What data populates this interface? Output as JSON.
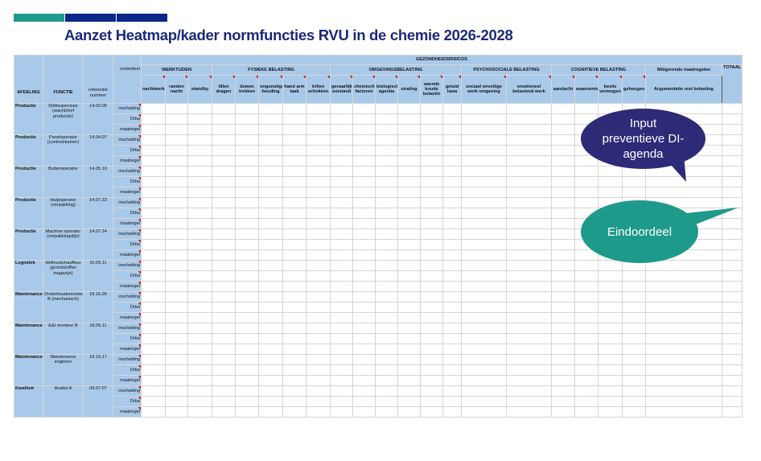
{
  "title": "Aanzet Heatmap/kader normfuncties RVU in de chemie 2026-2028",
  "colors": {
    "teal": "#1f9a8f",
    "navy": "#0a2888",
    "header_blue": "#a9c9ea",
    "bubble_purple": "#2d2a78",
    "bubble_teal": "#1d9a8a"
  },
  "header": {
    "top": "GEZONDHEIDSRISICOS",
    "afdeling": "AFDELING",
    "functie": "FUNCTIE",
    "referentie": "referentie nummer",
    "onderdeel": "onderdeel",
    "groups": [
      {
        "name": "WERKTIJDEN",
        "cols": [
          "nachtwerk",
          "randen nacht",
          "standby"
        ]
      },
      {
        "name": "FYSIEKE BELASTING",
        "cols": [
          "tillen dragen",
          "duwen trekken",
          "ongunstige houding",
          "hand arm taak",
          "trillen schokken"
        ]
      },
      {
        "name": "OMGEVINGSBELASTING",
        "cols": [
          "gevaarlijke omstand",
          "chemische factoren",
          "biologische agentia",
          "straling",
          "warmte koude belastin",
          "geluid lawa"
        ]
      },
      {
        "name": "PSYCHOSOCIALE BELASTING",
        "cols": [
          "sociaal onveilige werk omgeving",
          "emotioneel belastend werk"
        ]
      },
      {
        "name": "COGNITIEVE BELASTING",
        "cols": [
          "aandacht",
          "waarnemings",
          "beslis vermogen",
          "geheugen"
        ]
      }
    ],
    "mitigerende": "Mitigerende maatregelen",
    "argumentatie": "Argumentatie rest belasting",
    "totaal": "TOTAAL"
  },
  "sub_rows": [
    "inschatting",
    "Drba",
    "maatregel"
  ],
  "rows": [
    {
      "afdeling": "Productie",
      "functie": "Shiftsupervisor (wachtchef productie)",
      "ref": "14.02.05"
    },
    {
      "afdeling": "Productie",
      "functie": "Paneloperator (controlekamer)",
      "ref": "14.04.07"
    },
    {
      "afdeling": "Productie",
      "functie": "Buitenoperator",
      "ref": "14.05.10"
    },
    {
      "afdeling": "Productie",
      "functie": "Hulpoperator (verpakking)",
      "ref": "14.07.23"
    },
    {
      "afdeling": "Productie",
      "functie": "Machine operator (verpakkingslijn)",
      "ref": "14.07.24"
    },
    {
      "afdeling": "Logistiek",
      "functie": "Heftruckchauffeur (grondstoffen magazijn)",
      "ref": "10.05.11"
    },
    {
      "afdeling": "Maintenance",
      "functie": "Onderhoudsmonteur B (mechanisch)",
      "ref": "18.16.26"
    },
    {
      "afdeling": "Maintenance",
      "functie": "E&I monteur B",
      "ref": "18.05.11"
    },
    {
      "afdeling": "Maintenance",
      "functie": "Maintenance engineer",
      "ref": "18.10.17"
    },
    {
      "afdeling": "Kwaliteit",
      "functie": "Analist A",
      "ref": "09.07.07"
    }
  ],
  "callouts": {
    "input": "Input preventieve DI-agenda",
    "eindoordeel": "Eindoordeel"
  }
}
